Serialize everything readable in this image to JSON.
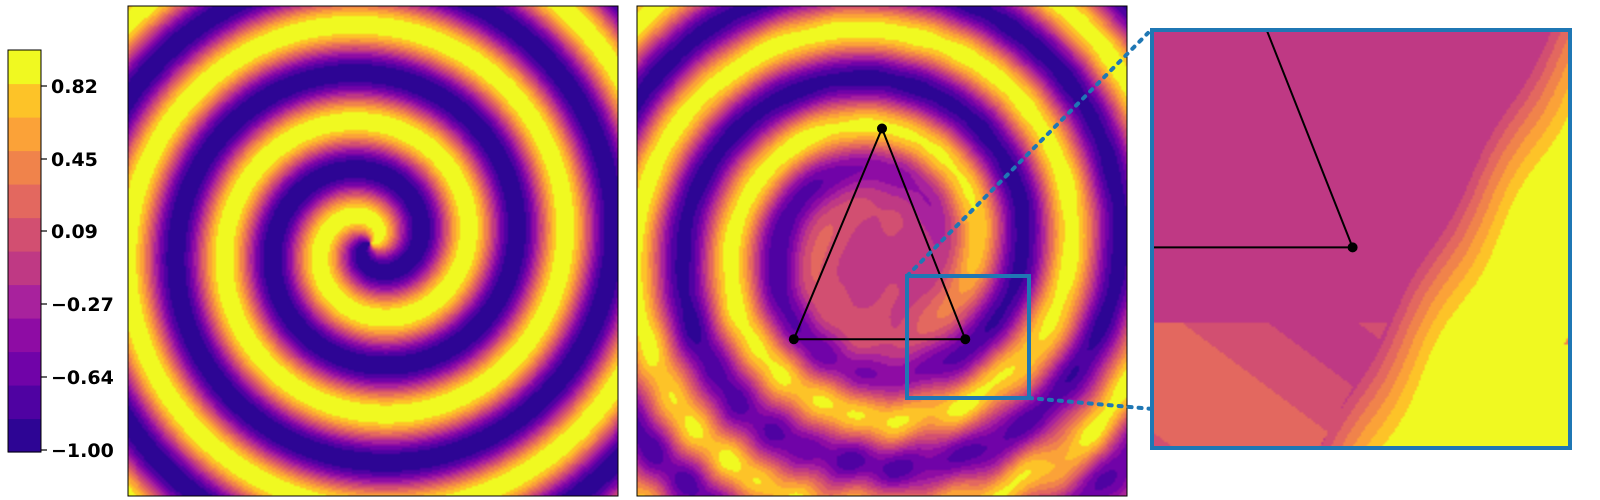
{
  "colorbar": {
    "tick_labels": [
      "0.82",
      "0.45",
      "0.09",
      "−0.27",
      "−0.64",
      "−1.00"
    ],
    "levels": 11,
    "range": [
      -1.0,
      1.0
    ],
    "colors": [
      "#2d0594",
      "#4f02a2",
      "#7003a8",
      "#8e0ca4",
      "#a8229d",
      "#bf3984",
      "#d24f71",
      "#e3685f",
      "#f0834b",
      "#fba238",
      "#fdc328",
      "#f0f921"
    ]
  },
  "chart_data": [
    {
      "type": "heatmap",
      "panel": "spiral-wave",
      "colormap": "plasma",
      "value_range": [
        -1.0,
        1.0
      ],
      "pattern": "single-armed Archimedean spiral wave, 5 turns across the domain",
      "axes_ticks": false
    },
    {
      "type": "heatmap",
      "panel": "perturbed-spiral-wave",
      "colormap": "plasma",
      "value_range": [
        -1.0,
        1.0
      ],
      "pattern": "spiral wave disrupted inside a triangular region of three point sources",
      "triangle_vertices": [
        [
          0.5,
          0.75
        ],
        [
          0.32,
          0.32
        ],
        [
          0.67,
          0.32
        ]
      ],
      "zoom_region": {
        "x": [
          0.55,
          0.8
        ],
        "y": [
          0.2,
          0.45
        ]
      },
      "axes_ticks": false
    },
    {
      "type": "heatmap",
      "panel": "zoom-inset",
      "colormap": "plasma",
      "value_range": [
        -1.0,
        1.0
      ],
      "source_region": {
        "x": [
          0.55,
          0.8
        ],
        "y": [
          0.2,
          0.45
        ]
      },
      "frame_color": "#1f77b4",
      "axes_ticks": false
    }
  ]
}
